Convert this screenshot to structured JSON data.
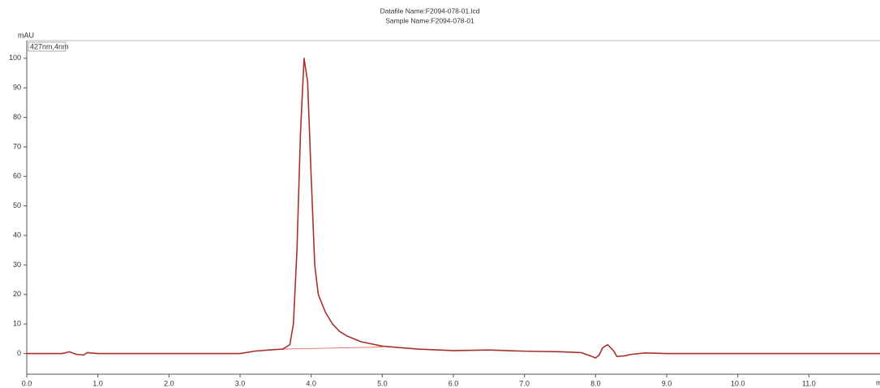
{
  "chart_data": {
    "type": "line",
    "title": "Datafile Name:F2094-078-01.lcd",
    "subtitle": "Sample Name:F2094-078-01",
    "y_label": "mAU",
    "x_label": "min",
    "xlim": [
      0,
      12
    ],
    "ylim": [
      -7,
      106
    ],
    "xticks": [
      {
        "value": 0,
        "label": "0.0"
      },
      {
        "value": 1,
        "label": "1.0"
      },
      {
        "value": 2,
        "label": "2.0"
      },
      {
        "value": 3,
        "label": "3.0"
      },
      {
        "value": 4,
        "label": "4.0"
      },
      {
        "value": 5,
        "label": "5.0"
      },
      {
        "value": 6,
        "label": "6.0"
      },
      {
        "value": 7,
        "label": "7.0"
      },
      {
        "value": 8,
        "label": "8.0"
      },
      {
        "value": 9,
        "label": "9.0"
      },
      {
        "value": 10,
        "label": "10.0"
      },
      {
        "value": 11,
        "label": "11.0"
      }
    ],
    "yticks": [
      0,
      10,
      20,
      30,
      40,
      50,
      60,
      70,
      80,
      90,
      100
    ],
    "x": [
      0,
      0.5,
      0.6,
      0.7,
      0.8,
      0.85,
      0.9,
      1.0,
      2.0,
      3.0,
      3.2,
      3.4,
      3.6,
      3.7,
      3.75,
      3.8,
      3.85,
      3.9,
      3.95,
      4.0,
      4.05,
      4.1,
      4.2,
      4.3,
      4.4,
      4.5,
      4.7,
      5.0,
      5.5,
      6.0,
      6.5,
      7.0,
      7.5,
      7.8,
      7.95,
      8.0,
      8.05,
      8.1,
      8.17,
      8.25,
      8.3,
      8.4,
      8.5,
      8.7,
      9.0,
      10.0,
      11.0,
      12.0
    ],
    "series": [
      {
        "name": "427nm,4nm",
        "color": "#a8322a",
        "values": [
          0,
          0,
          0.6,
          -0.3,
          -0.5,
          0.3,
          0.2,
          0,
          0,
          0,
          0.8,
          1.2,
          1.5,
          3,
          10,
          35,
          75,
          100,
          92,
          60,
          30,
          20,
          14,
          10,
          7.5,
          6,
          4,
          2.5,
          1.5,
          1.0,
          1.2,
          0.8,
          0.6,
          0.3,
          -1,
          -1.5,
          -0.5,
          2,
          3,
          1,
          -1,
          -0.8,
          -0.3,
          0.2,
          0,
          0,
          0,
          0
        ]
      }
    ],
    "baseline": {
      "x": [
        3.6,
        5.0
      ],
      "values": [
        1.5,
        2.2
      ],
      "color": "#e06050"
    }
  }
}
